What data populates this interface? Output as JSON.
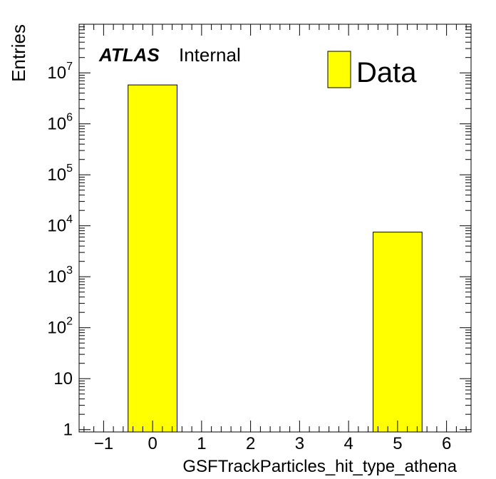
{
  "chart_data": {
    "type": "bar",
    "title": "",
    "xlabel": "GSFTrackParticles_hit_type_athena",
    "ylabel": "Entries",
    "x_ticks": [
      -1,
      0,
      1,
      2,
      3,
      4,
      5,
      6
    ],
    "x_tick_labels": [
      "−1",
      "0",
      "1",
      "2",
      "3",
      "4",
      "5",
      "6"
    ],
    "xlim": [
      -1.5,
      6.5
    ],
    "ylim": [
      0.9,
      90000000
    ],
    "log_y": true,
    "y_ticks": [
      1,
      10,
      100,
      1000,
      10000,
      100000,
      1000000,
      10000000
    ],
    "y_tick_labels": [
      {
        "base": "1",
        "exp": ""
      },
      {
        "base": "10",
        "exp": ""
      },
      {
        "base": "10",
        "exp": "2"
      },
      {
        "base": "10",
        "exp": "3"
      },
      {
        "base": "10",
        "exp": "4"
      },
      {
        "base": "10",
        "exp": "5"
      },
      {
        "base": "10",
        "exp": "6"
      },
      {
        "base": "10",
        "exp": "7"
      }
    ],
    "series": [
      {
        "name": "Data",
        "color": "#ffff00",
        "bins": [
          {
            "low": -0.5,
            "high": 0.5,
            "value": 5800000
          },
          {
            "low": 4.5,
            "high": 5.5,
            "value": 7500
          }
        ]
      }
    ],
    "legend_position": "top-right",
    "grid": false,
    "label": {
      "bold": "ATLAS",
      "normal": "Internal"
    }
  }
}
